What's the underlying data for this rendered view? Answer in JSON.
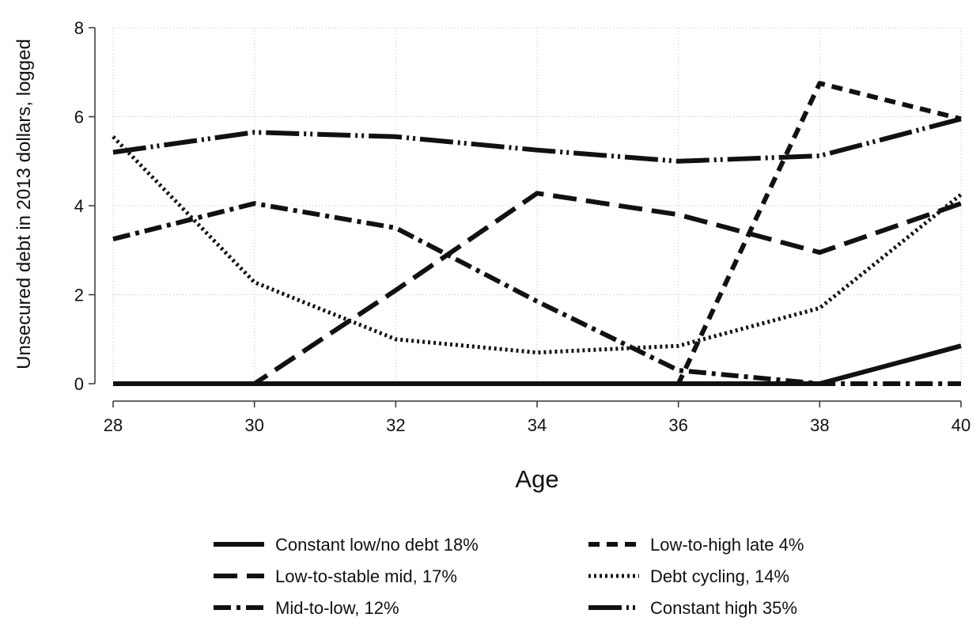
{
  "chart_data": {
    "type": "line",
    "title": "",
    "xlabel": "Age",
    "ylabel": "Unsecured debt in 2013 dollars, logged",
    "x": [
      28,
      30,
      32,
      34,
      36,
      38,
      40
    ],
    "x_ticks": [
      "28",
      "30",
      "32",
      "34",
      "36",
      "38",
      "40"
    ],
    "y_ticks": [
      "0",
      "2",
      "4",
      "6",
      "8"
    ],
    "xlim": [
      28,
      40
    ],
    "ylim": [
      0,
      8
    ],
    "grid": true,
    "legend_position": "bottom",
    "series": [
      {
        "name": "Constant low/no debt 18%",
        "style": "solid",
        "values": [
          0,
          0,
          0,
          0,
          0,
          0,
          0.85
        ]
      },
      {
        "name": "Low-to-high late 4%",
        "style": "short-dash",
        "values": [
          0,
          0,
          0,
          0,
          0,
          6.75,
          5.95
        ]
      },
      {
        "name": "Low-to-stable mid, 17%",
        "style": "long-dash",
        "values": [
          0,
          0,
          2.1,
          4.28,
          3.8,
          2.95,
          4.05
        ]
      },
      {
        "name": "Debt cycling, 14%",
        "style": "dotted",
        "values": [
          5.55,
          2.28,
          1.0,
          0.7,
          0.85,
          1.7,
          4.25
        ]
      },
      {
        "name": "Mid-to-low, 12%",
        "style": "dash-dot",
        "values": [
          3.25,
          4.05,
          3.5,
          1.85,
          0.3,
          0,
          0
        ]
      },
      {
        "name": "Constant high  35%",
        "style": "long-dash-dot-dot",
        "values": [
          5.2,
          5.65,
          5.55,
          5.25,
          5.0,
          5.12,
          5.95
        ]
      }
    ]
  }
}
